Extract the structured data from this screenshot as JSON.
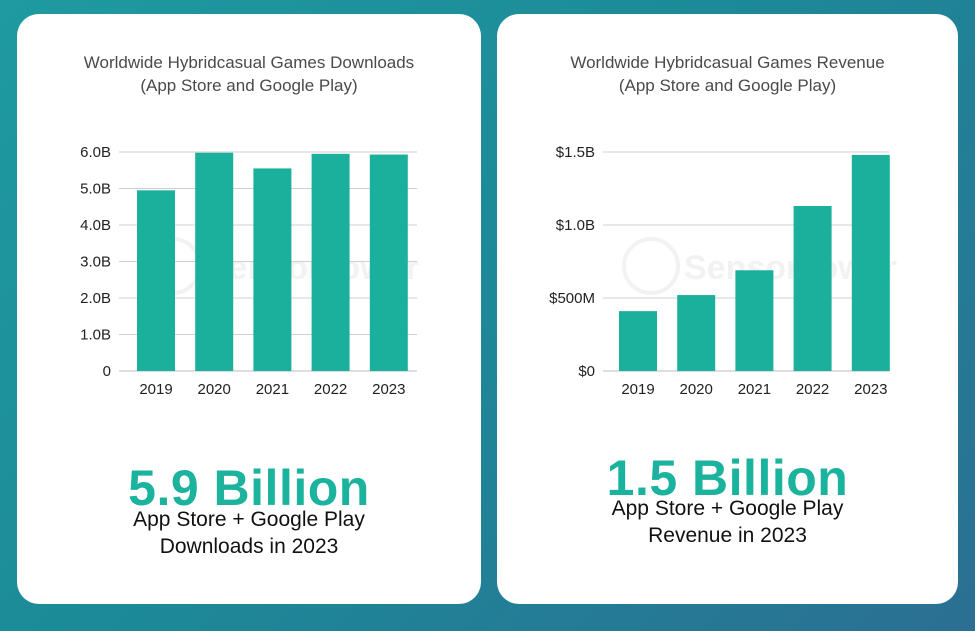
{
  "colors": {
    "accent": "#1bb39d",
    "bar": "#1ab09b",
    "grid": "#d0d0d0"
  },
  "watermark": "SensorTower",
  "charts": [
    {
      "id": "downloads",
      "title_line1": "Worldwide Hybridcasual Games Downloads",
      "title_line2": "(App Store and Google Play)",
      "big_stat": "5.9 Billion",
      "sub_line1": "App Store + Google Play",
      "sub_line2": "Downloads in 2023"
    },
    {
      "id": "revenue",
      "title_line1": "Worldwide Hybridcasual Games Revenue",
      "title_line2": "(App Store and Google Play)",
      "big_stat": "1.5 Billion",
      "sub_line1": "App Store + Google Play",
      "sub_line2": "Revenue in 2023"
    }
  ],
  "chart_data": [
    {
      "type": "bar",
      "title": "Worldwide Hybridcasual Games Downloads (App Store and Google Play)",
      "categories": [
        "2019",
        "2020",
        "2021",
        "2022",
        "2023"
      ],
      "values": [
        4.95,
        5.98,
        5.55,
        5.95,
        5.93
      ],
      "unit": "billions of downloads",
      "ylim": [
        0,
        6.0
      ],
      "yticks": [
        0,
        1.0,
        2.0,
        3.0,
        4.0,
        5.0,
        6.0
      ],
      "ytick_labels": [
        "0",
        "1.0B",
        "2.0B",
        "3.0B",
        "4.0B",
        "5.0B",
        "6.0B"
      ],
      "xlabel": "",
      "ylabel": "",
      "grid": true
    },
    {
      "type": "bar",
      "title": "Worldwide Hybridcasual Games Revenue (App Store and Google Play)",
      "categories": [
        "2019",
        "2020",
        "2021",
        "2022",
        "2023"
      ],
      "values": [
        0.41,
        0.52,
        0.69,
        1.13,
        1.48
      ],
      "unit": "billions USD",
      "ylim": [
        0,
        1.5
      ],
      "yticks": [
        0,
        0.5,
        1.0,
        1.5
      ],
      "ytick_labels": [
        "$0",
        "$500M",
        "$1.0B",
        "$1.5B"
      ],
      "xlabel": "",
      "ylabel": "",
      "grid": true
    }
  ]
}
